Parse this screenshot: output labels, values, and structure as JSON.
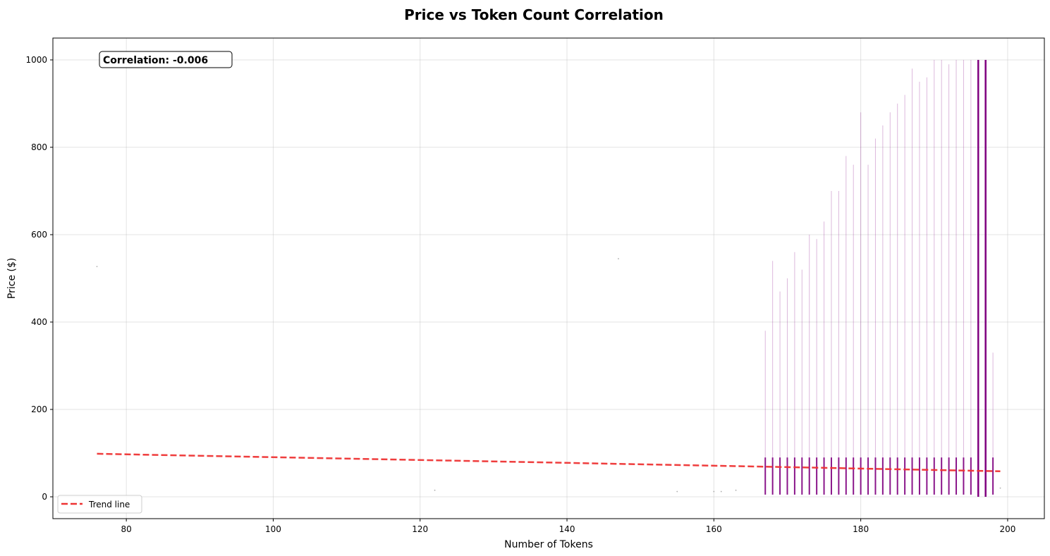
{
  "chart_data": {
    "type": "scatter",
    "title": "Price vs Token Count Correlation",
    "xlabel": "Number of Tokens",
    "ylabel": "Price ($)",
    "xlim": [
      70,
      205
    ],
    "ylim": [
      -50,
      1050
    ],
    "xticks": [
      80,
      100,
      120,
      140,
      160,
      180,
      200
    ],
    "yticks": [
      0,
      200,
      400,
      600,
      800,
      1000
    ],
    "grid": true,
    "annotation": "Correlation: -0.006",
    "legend": {
      "position": "lower-left",
      "entries": [
        "Trend line"
      ]
    },
    "colors": {
      "points": "#800080",
      "trend": "#ee3333"
    },
    "trend_line": {
      "x": [
        76,
        199
      ],
      "y": [
        98.5,
        58.5
      ]
    },
    "columns": [
      {
        "x": 167,
        "y_range": [
          5,
          380
        ]
      },
      {
        "x": 168,
        "y_range": [
          5,
          540
        ]
      },
      {
        "x": 169,
        "y_range": [
          5,
          470
        ]
      },
      {
        "x": 170,
        "y_range": [
          5,
          500
        ]
      },
      {
        "x": 171,
        "y_range": [
          5,
          560
        ]
      },
      {
        "x": 172,
        "y_range": [
          5,
          520
        ]
      },
      {
        "x": 173,
        "y_range": [
          5,
          600
        ]
      },
      {
        "x": 174,
        "y_range": [
          5,
          590
        ]
      },
      {
        "x": 175,
        "y_range": [
          5,
          630
        ]
      },
      {
        "x": 176,
        "y_range": [
          5,
          700
        ]
      },
      {
        "x": 177,
        "y_range": [
          5,
          700
        ]
      },
      {
        "x": 178,
        "y_range": [
          5,
          780
        ]
      },
      {
        "x": 179,
        "y_range": [
          5,
          760
        ]
      },
      {
        "x": 180,
        "y_range": [
          5,
          880
        ]
      },
      {
        "x": 181,
        "y_range": [
          5,
          760
        ]
      },
      {
        "x": 182,
        "y_range": [
          5,
          820
        ]
      },
      {
        "x": 183,
        "y_range": [
          5,
          850
        ]
      },
      {
        "x": 184,
        "y_range": [
          5,
          880
        ]
      },
      {
        "x": 185,
        "y_range": [
          5,
          900
        ]
      },
      {
        "x": 186,
        "y_range": [
          5,
          920
        ]
      },
      {
        "x": 187,
        "y_range": [
          5,
          980
        ]
      },
      {
        "x": 188,
        "y_range": [
          5,
          950
        ]
      },
      {
        "x": 189,
        "y_range": [
          5,
          960
        ]
      },
      {
        "x": 190,
        "y_range": [
          5,
          1000
        ]
      },
      {
        "x": 191,
        "y_range": [
          5,
          1000
        ]
      },
      {
        "x": 192,
        "y_range": [
          5,
          990
        ]
      },
      {
        "x": 193,
        "y_range": [
          5,
          1000
        ]
      },
      {
        "x": 194,
        "y_range": [
          5,
          1000
        ]
      },
      {
        "x": 195,
        "y_range": [
          5,
          1000
        ]
      },
      {
        "x": 196,
        "y_range": [
          0,
          1000
        ]
      },
      {
        "x": 197,
        "y_range": [
          0,
          1000
        ]
      },
      {
        "x": 198,
        "y_range": [
          5,
          330
        ]
      }
    ],
    "outliers": [
      {
        "x": 76,
        "y": 527
      },
      {
        "x": 122,
        "y": 15
      },
      {
        "x": 147,
        "y": 545
      },
      {
        "x": 155,
        "y": 12
      },
      {
        "x": 160,
        "y": 12
      },
      {
        "x": 161,
        "y": 12
      },
      {
        "x": 163,
        "y": 15
      },
      {
        "x": 199,
        "y": 20
      }
    ]
  }
}
